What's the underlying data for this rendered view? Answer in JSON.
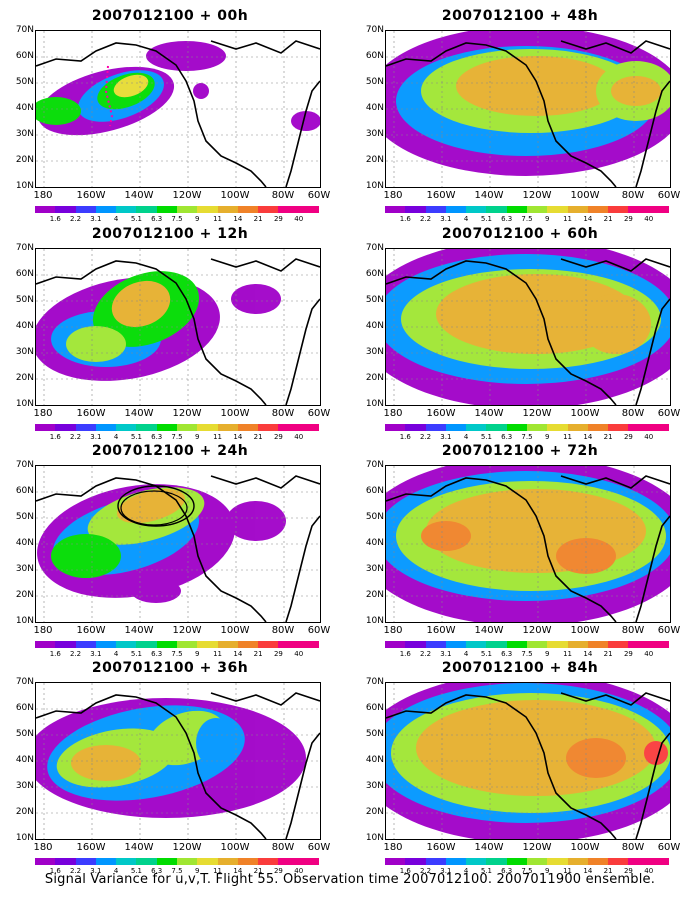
{
  "panels": [
    {
      "title": "2007012100 + 00h",
      "lead": 0
    },
    {
      "title": "2007012100 + 48h",
      "lead": 48
    },
    {
      "title": "2007012100 + 12h",
      "lead": 12
    },
    {
      "title": "2007012100 + 60h",
      "lead": 60
    },
    {
      "title": "2007012100 + 24h",
      "lead": 24
    },
    {
      "title": "2007012100 + 72h",
      "lead": 72
    },
    {
      "title": "2007012100 + 36h",
      "lead": 36
    },
    {
      "title": "2007012100 + 84h",
      "lead": 84
    }
  ],
  "lat_labels": [
    "70N",
    "60N",
    "50N",
    "40N",
    "30N",
    "20N",
    "10N"
  ],
  "lon_labels": [
    "180",
    "160W",
    "140W",
    "120W",
    "100W",
    "80W",
    "60W"
  ],
  "colorbar": {
    "labels": [
      "1.6",
      "2.2",
      "3.1",
      "4",
      "5.1",
      "6.3",
      "7.5",
      "9",
      "11",
      "14",
      "21",
      "29",
      "40"
    ],
    "colors": [
      "#a000c8",
      "#7800dc",
      "#3c3cff",
      "#0096ff",
      "#00c8c8",
      "#00d28c",
      "#00dc00",
      "#a0e632",
      "#e6dc32",
      "#e6af2d",
      "#f08228",
      "#fa3c3c",
      "#f00082"
    ]
  },
  "footer": "Signal Variance for u,v,T. Flight 55. Observation time 2007012100. 2007011900 ensemble."
}
